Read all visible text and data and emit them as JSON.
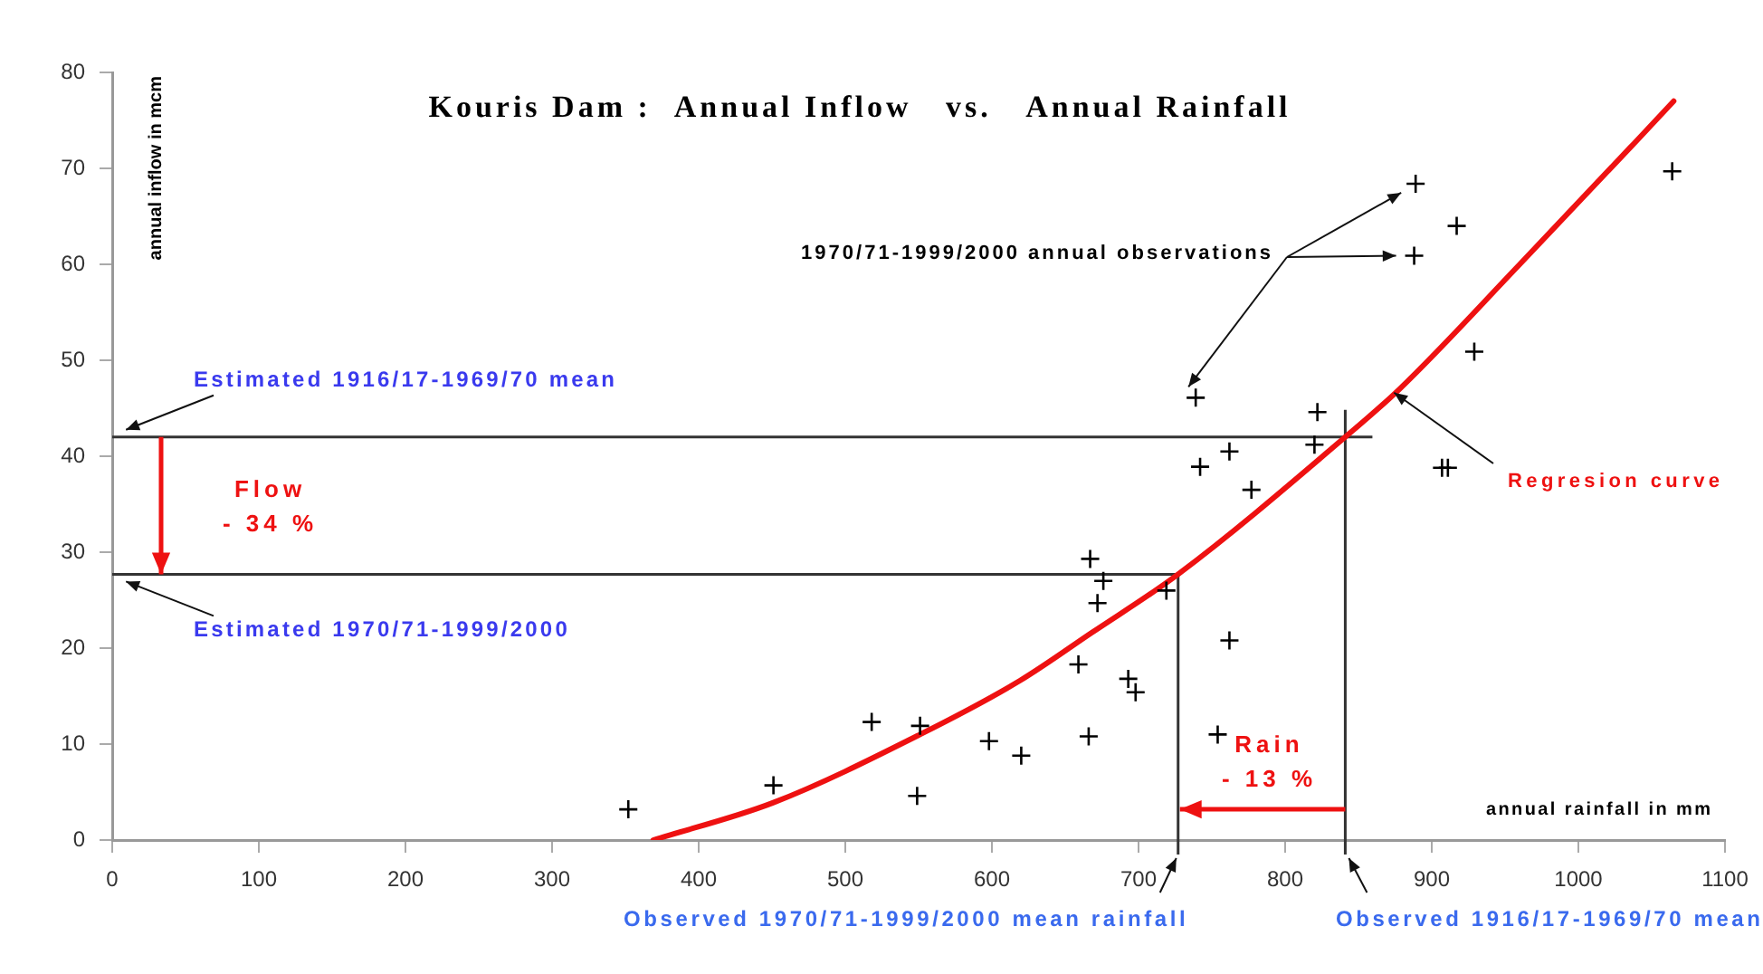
{
  "chart_data": {
    "type": "scatter",
    "title": "Kouris Dam :  Annual Inflow   vs.   Annual Rainfall",
    "xlabel": "annual rainfall in mm",
    "ylabel": "annual inflow in mcm",
    "xlim": [
      0,
      1100
    ],
    "xticks": [
      0,
      100,
      200,
      300,
      400,
      500,
      600,
      700,
      800,
      900,
      1000,
      1100
    ],
    "ylim": [
      0,
      80
    ],
    "yticks": [
      0,
      10,
      20,
      30,
      40,
      50,
      60,
      70,
      80
    ],
    "grid": false,
    "legend": false,
    "series": [
      {
        "color": "#000000",
        "marker": "cross",
        "x": [
          352,
          451,
          518,
          551,
          549,
          598,
          620,
          666,
          659,
          693,
          698,
          667,
          676,
          672,
          719,
          762,
          754,
          889,
          917,
          888,
          1064,
          929,
          739,
          822,
          762,
          820,
          742,
          777,
          907,
          911
        ],
        "values": [
          3.2,
          5.7,
          12.3,
          11.9,
          4.6,
          10.3,
          8.8,
          10.8,
          18.3,
          16.8,
          15.4,
          29.3,
          27.0,
          24.7,
          26.0,
          20.8,
          11.0,
          68.4,
          64.0,
          60.9,
          69.7,
          50.9,
          46.1,
          44.6,
          40.5,
          41.2,
          38.9,
          36.5,
          38.8,
          38.8
        ]
      },
      {
        "type": "line",
        "name": "Regresion curve",
        "color": "#ee1111",
        "marker": "none",
        "x": [
          369,
          451,
          551,
          619,
          668,
          727,
          841,
          878,
          960,
          1038,
          1065
        ],
        "values": [
          0,
          3.9,
          11,
          16.6,
          21.6,
          27.7,
          42,
          47,
          60,
          72.6,
          77
        ]
      }
    ],
    "ref_lines": [
      {
        "axis": "y",
        "value": 42,
        "label": "Estimated 1916/17-1969/70 mean",
        "color": "#333333"
      },
      {
        "axis": "y",
        "value": 27.7,
        "label": "Estimated 1970/71-1999/2000",
        "color": "#333333"
      },
      {
        "axis": "x",
        "value": 727,
        "label": "Observed 1970/71-1999/2000 mean rainfall",
        "color": "#333333"
      },
      {
        "axis": "x",
        "value": 841,
        "label": "Observed 1916/17-1969/70 mean",
        "color": "#333333"
      }
    ],
    "annotations": [
      "1970/71-1999/2000 annual observations",
      "Flow\n- 34 %",
      "Rain\n- 13 %"
    ]
  }
}
